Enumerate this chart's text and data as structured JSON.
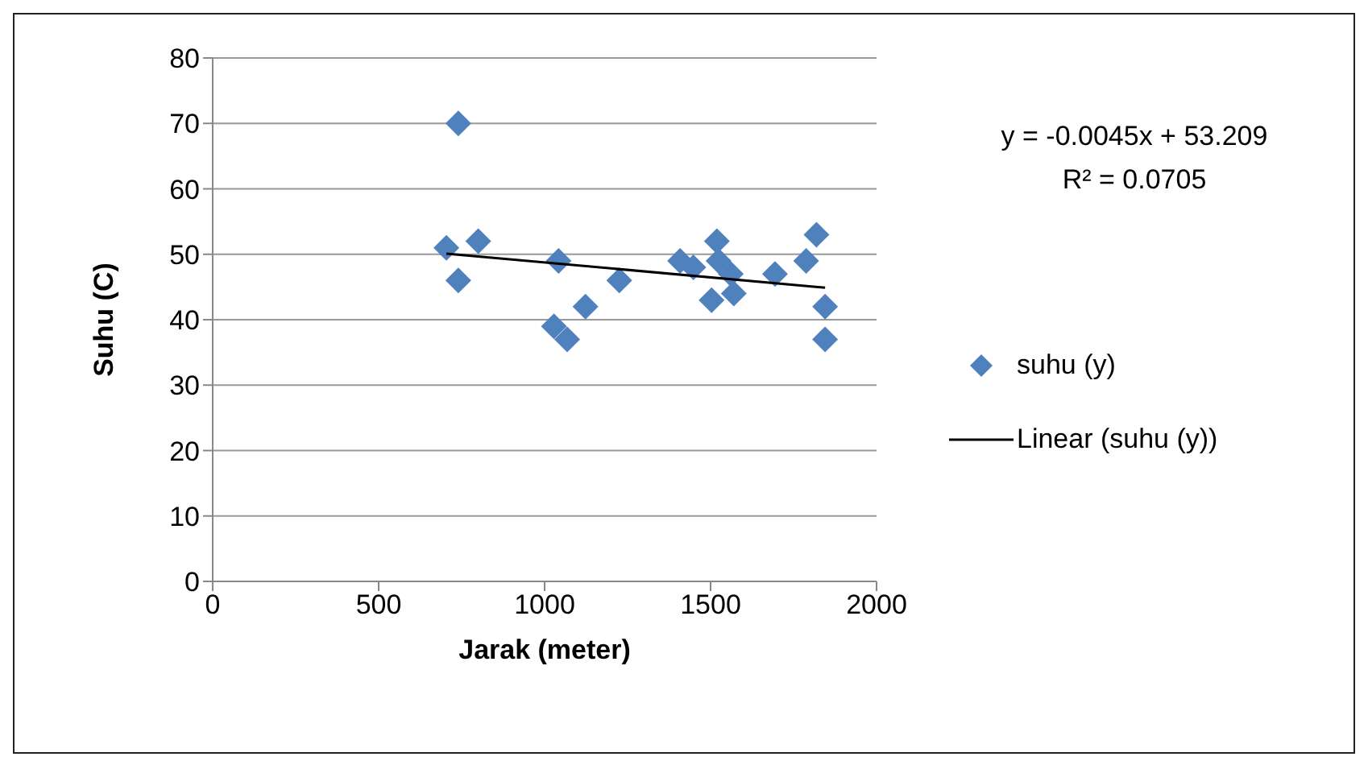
{
  "chart_data": {
    "type": "scatter",
    "xlabel": "Jarak (meter)",
    "ylabel": "Suhu (C)",
    "xlim": [
      0,
      2000
    ],
    "xticks": [
      0,
      500,
      1000,
      1500,
      2000
    ],
    "ylim": [
      0,
      80
    ],
    "yticks": [
      0,
      10,
      20,
      30,
      40,
      50,
      60,
      70,
      80
    ],
    "grid": "y",
    "legend": "right",
    "marker": "diamond",
    "annotations": [
      "y = -0.0045x + 53.209",
      "R² = 0.0705"
    ],
    "series": [
      {
        "name": "suhu (y)",
        "type": "scatter",
        "color": "#4f81bd",
        "x": [
          704,
          740,
          740,
          800,
          1042,
          1028,
          1068,
          1123,
          1225,
          1408,
          1448,
          1519,
          1524,
          1561,
          1503,
          1570,
          1694,
          1788,
          1819,
          1845,
          1845
        ],
        "values": [
          51,
          70,
          46,
          52,
          49,
          39,
          37,
          42,
          46,
          49,
          48,
          52,
          49,
          47,
          43,
          44,
          47,
          49,
          53,
          42,
          37
        ]
      },
      {
        "name": "Linear (suhu (y))",
        "type": "line",
        "color": "#000000",
        "line_style": "solid",
        "marker": "none",
        "x": [
          704,
          1845
        ],
        "values": [
          50.1,
          44.9
        ]
      }
    ]
  }
}
